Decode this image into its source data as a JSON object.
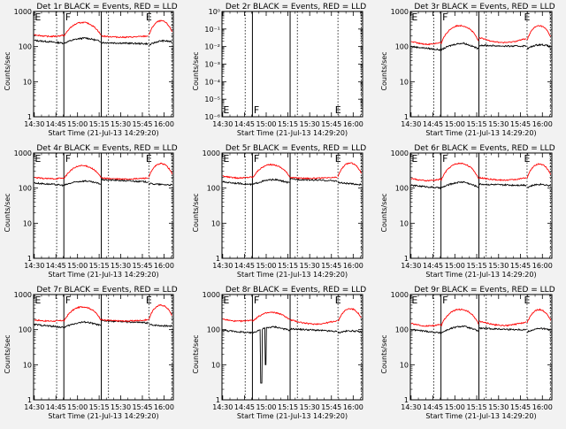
{
  "figure": {
    "xlabel": "Start Time (21-Jul-13 14:29:20)",
    "ylabel": "Counts/sec",
    "xticks": [
      "14:30",
      "14:45",
      "15:00",
      "15:15",
      "15:30",
      "15:45",
      "16:00"
    ],
    "xrange_minutes": [
      -0.5,
      96.5
    ],
    "series_colors": {
      "events": "#000000",
      "lld": "#ff0000"
    }
  },
  "chart_data": [
    {
      "type": "line",
      "title": "Det 1r  BLACK = Events, RED = LLD",
      "yscale": "log",
      "ylim": [
        1,
        1000
      ],
      "yticks": [
        "1",
        "10",
        "100",
        "1000"
      ],
      "markers": [
        "E",
        "F",
        "E"
      ],
      "profile": "A",
      "series": [
        {
          "name": "Events",
          "values": [
            150,
            125,
            175,
            140,
            130,
            120,
            155,
            140
          ]
        },
        {
          "name": "LLD",
          "values": [
            220,
            190,
            480,
            230,
            200,
            205,
            520,
            330
          ]
        }
      ]
    },
    {
      "type": "line",
      "title": "Det 2r  BLACK = Events, RED = LLD",
      "yscale": "log",
      "ylim": [
        1e-06,
        1
      ],
      "yticks": [
        "10⁻⁶",
        "10⁻⁵",
        "10⁻⁴",
        "10⁻³",
        "10⁻²",
        "10⁻¹",
        "10⁰"
      ],
      "markers": [
        "E",
        "F",
        "E"
      ],
      "profile": "none",
      "series": []
    },
    {
      "type": "line",
      "title": "Det 3r  BLACK = Events, RED = LLD",
      "yscale": "log",
      "ylim": [
        1,
        1000
      ],
      "yticks": [
        "1",
        "10",
        "100",
        "1000"
      ],
      "markers": [
        "E",
        "F",
        "E"
      ],
      "profile": "B",
      "series": [
        {
          "name": "Events",
          "values": [
            100,
            80,
            125,
            85,
            110,
            95,
            130,
            90
          ]
        },
        {
          "name": "LLD",
          "values": [
            140,
            115,
            390,
            165,
            180,
            150,
            380,
            230
          ]
        }
      ]
    },
    {
      "type": "line",
      "title": "Det 4r  BLACK = Events, RED = LLD",
      "yscale": "log",
      "ylim": [
        1,
        1000
      ],
      "yticks": [
        "1",
        "10",
        "100",
        "1000"
      ],
      "markers": [
        "E",
        "F",
        "E"
      ],
      "profile": "A",
      "series": [
        {
          "name": "Events",
          "values": [
            140,
            120,
            160,
            130,
            175,
            150,
            130,
            115
          ]
        },
        {
          "name": "LLD",
          "values": [
            200,
            180,
            430,
            220,
            195,
            200,
            480,
            320
          ]
        }
      ]
    },
    {
      "type": "line",
      "title": "Det 5r  BLACK = Events, RED = LLD",
      "yscale": "log",
      "ylim": [
        1,
        1000
      ],
      "yticks": [
        "1",
        "10",
        "100",
        "1000"
      ],
      "markers": [
        "E",
        "F",
        "E"
      ],
      "profile": "A",
      "series": [
        {
          "name": "Events",
          "values": [
            150,
            125,
            175,
            140,
            180,
            160,
            140,
            110
          ]
        },
        {
          "name": "LLD",
          "values": [
            220,
            190,
            460,
            230,
            200,
            210,
            500,
            330
          ]
        }
      ]
    },
    {
      "type": "line",
      "title": "Det 6r  BLACK = Events, RED = LLD",
      "yscale": "log",
      "ylim": [
        1,
        1000
      ],
      "yticks": [
        "1",
        "10",
        "100",
        "1000"
      ],
      "markers": [
        "E",
        "F",
        "E"
      ],
      "profile": "B",
      "series": [
        {
          "name": "Events",
          "values": [
            120,
            100,
            150,
            105,
            130,
            115,
            145,
            105
          ]
        },
        {
          "name": "LLD",
          "values": [
            190,
            160,
            500,
            210,
            200,
            190,
            470,
            300
          ]
        }
      ]
    },
    {
      "type": "line",
      "title": "Det 7r  BLACK = Events, RED = LLD",
      "yscale": "log",
      "ylim": [
        1,
        1000
      ],
      "yticks": [
        "1",
        "10",
        "100",
        "1000"
      ],
      "markers": [
        "E",
        "F",
        "E"
      ],
      "profile": "A",
      "series": [
        {
          "name": "Events",
          "values": [
            140,
            115,
            165,
            130,
            180,
            155,
            135,
            115
          ]
        },
        {
          "name": "LLD",
          "values": [
            190,
            170,
            440,
            210,
            190,
            195,
            480,
            310
          ]
        }
      ]
    },
    {
      "type": "line",
      "title": "Det 8r  BLACK = Events, RED = LLD",
      "yscale": "log",
      "ylim": [
        1,
        1000
      ],
      "yticks": [
        "1",
        "10",
        "100",
        "1000"
      ],
      "markers": [
        "E",
        "F",
        "E"
      ],
      "profile": "C",
      "series": [
        {
          "name": "Events",
          "values": [
            95,
            80,
            120,
            95,
            105,
            90,
            100,
            80
          ]
        },
        {
          "name": "LLD",
          "values": [
            200,
            170,
            300,
            230,
            190,
            165,
            380,
            270
          ]
        }
      ]
    },
    {
      "type": "line",
      "title": "Det 9r  BLACK = Events, RED = LLD",
      "yscale": "log",
      "ylim": [
        1,
        1000
      ],
      "yticks": [
        "1",
        "10",
        "100",
        "1000"
      ],
      "markers": [
        "E",
        "F",
        "E"
      ],
      "profile": "B",
      "series": [
        {
          "name": "Events",
          "values": [
            100,
            80,
            125,
            90,
            110,
            95,
            120,
            90
          ]
        },
        {
          "name": "LLD",
          "values": [
            150,
            125,
            370,
            165,
            175,
            150,
            360,
            230
          ]
        }
      ]
    }
  ]
}
